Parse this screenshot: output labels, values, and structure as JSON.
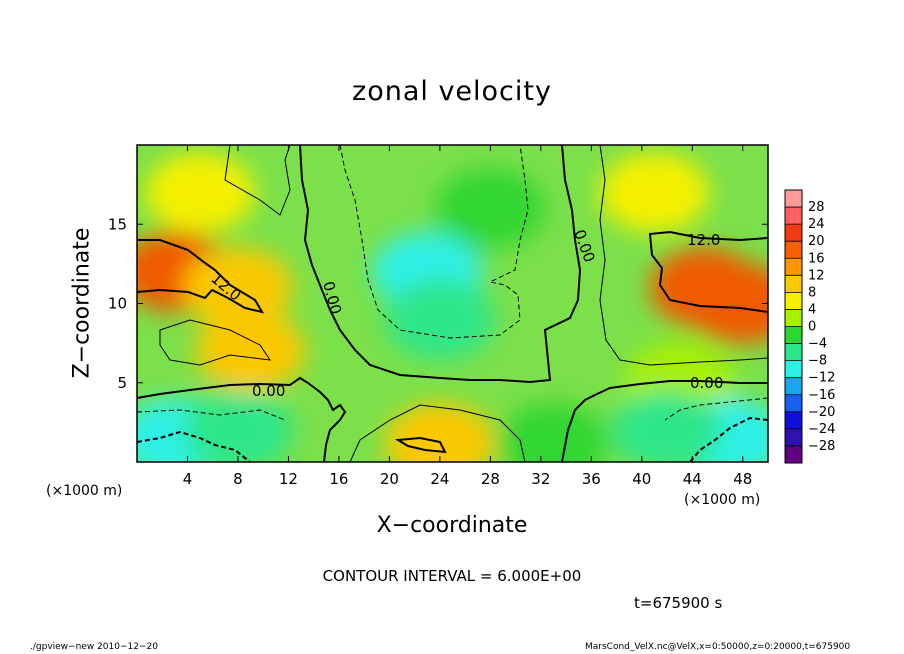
{
  "chart_data": {
    "type": "heatmap",
    "title": "zonal velocity",
    "xlabel": "X−coordinate",
    "ylabel": "Z−coordinate",
    "x_unit_left": "(×1000 m)",
    "x_unit_right": "(×1000 m)",
    "xlim": [
      0,
      50
    ],
    "ylim": [
      0,
      20
    ],
    "x_ticks": [
      4,
      8,
      12,
      16,
      20,
      24,
      28,
      32,
      36,
      40,
      44,
      48
    ],
    "y_ticks": [
      5,
      10,
      15
    ],
    "colorbar": {
      "ticks": [
        "28",
        "24",
        "20",
        "16",
        "12",
        "8",
        "4",
        "0",
        "−4",
        "−8",
        "−12",
        "−16",
        "−20",
        "−24",
        "−28"
      ],
      "colors": [
        "#ff9a9a",
        "#ff6060",
        "#f03c10",
        "#f56000",
        "#fa9600",
        "#fac800",
        "#f5f000",
        "#a8f000",
        "#2ed52e",
        "#2ee68a",
        "#2ef0e6",
        "#18a8f0",
        "#1860f0",
        "#1010d8",
        "#3010b0",
        "#600080"
      ]
    },
    "contour_labels": [
      "12.0",
      "12.0",
      "0.00",
      "0.00",
      "0.00",
      "0.00"
    ],
    "contour_interval": "CONTOUR INTERVAL = 6.000E+00",
    "time": "t=675900 s",
    "footer_left": "./gpview−new  2010−12−20",
    "footer_right": "MarsCond_VelX.nc@VelX,x=0:50000,z=0:20000,t=675900",
    "field_blobs": [
      {
        "x": 3,
        "z": 12,
        "value": 18
      },
      {
        "x": 8,
        "z": 11,
        "value": 12
      },
      {
        "x": 9,
        "z": 7,
        "value": 10
      },
      {
        "x": 5,
        "z": 17,
        "value": 8
      },
      {
        "x": 45,
        "z": 11,
        "value": 18
      },
      {
        "x": 48,
        "z": 10,
        "value": 20
      },
      {
        "x": 41,
        "z": 17,
        "value": 8
      },
      {
        "x": 43,
        "z": 5,
        "value": 4
      },
      {
        "x": 23,
        "z": 12,
        "value": -9
      },
      {
        "x": 24,
        "z": 9,
        "value": -6
      },
      {
        "x": 28,
        "z": 16,
        "value": -3
      },
      {
        "x": 3,
        "z": 1.5,
        "value": -9
      },
      {
        "x": 8,
        "z": 2,
        "value": -4
      },
      {
        "x": 47,
        "z": 1.5,
        "value": -10
      },
      {
        "x": 42,
        "z": 2,
        "value": -5
      },
      {
        "x": 24,
        "z": 1.2,
        "value": 9
      },
      {
        "x": 33,
        "z": 1.2,
        "value": -3
      }
    ]
  }
}
